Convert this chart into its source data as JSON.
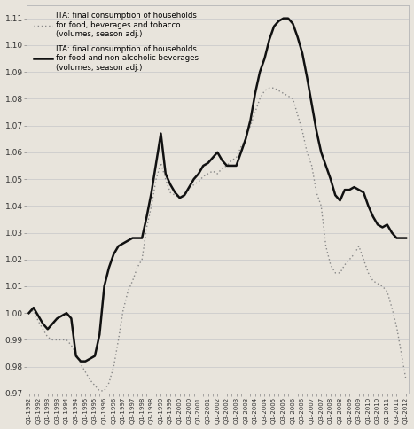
{
  "legend1_label": "ITA: final consumption of households\nfor food, beverages and tobacco\n(volumes, season adj.)",
  "legend2_label": "ITA: final consumption of households\nfor food and non-alcoholic beverages\n(volumes, season adj.)",
  "background_color": "#e8e4dc",
  "grid_color": "#cccccc",
  "solid_color": "#111111",
  "dotted_color": "#888888",
  "solid_lw": 1.8,
  "dotted_lw": 1.0,
  "ylim": [
    0.97,
    1.115
  ],
  "yticks": [
    0.97,
    0.98,
    0.99,
    1.0,
    1.01,
    1.02,
    1.03,
    1.04,
    1.05,
    1.06,
    1.07,
    1.08,
    1.09,
    1.1,
    1.11
  ],
  "solid_data": [
    1.0,
    1.002,
    0.999,
    0.996,
    0.994,
    0.996,
    0.998,
    0.999,
    1.0,
    0.998,
    0.984,
    0.982,
    0.982,
    0.983,
    0.984,
    0.992,
    1.01,
    1.017,
    1.022,
    1.025,
    1.026,
    1.027,
    1.028,
    1.028,
    1.028,
    1.036,
    1.045,
    1.056,
    1.067,
    1.052,
    1.048,
    1.045,
    1.043,
    1.044,
    1.047,
    1.05,
    1.052,
    1.055,
    1.056,
    1.058,
    1.06,
    1.057,
    1.055,
    1.055,
    1.055,
    1.06,
    1.065,
    1.072,
    1.082,
    1.09,
    1.095,
    1.102,
    1.107,
    1.109,
    1.11,
    1.11,
    1.108,
    1.103,
    1.097,
    1.088,
    1.078,
    1.068,
    1.06,
    1.055,
    1.05,
    1.044,
    1.042,
    1.046,
    1.046,
    1.047,
    1.046,
    1.045,
    1.04,
    1.036,
    1.033,
    1.032,
    1.033,
    1.03,
    1.028,
    1.028,
    1.028
  ],
  "dotted_data": [
    1.0,
    1.001,
    0.997,
    0.994,
    0.991,
    0.99,
    0.99,
    0.99,
    0.99,
    0.988,
    0.985,
    0.981,
    0.978,
    0.975,
    0.973,
    0.971,
    0.971,
    0.974,
    0.98,
    0.99,
    1.001,
    1.008,
    1.012,
    1.017,
    1.02,
    1.032,
    1.04,
    1.05,
    1.056,
    1.05,
    1.045,
    1.044,
    1.043,
    1.044,
    1.046,
    1.048,
    1.049,
    1.051,
    1.052,
    1.053,
    1.052,
    1.054,
    1.055,
    1.057,
    1.058,
    1.062,
    1.065,
    1.07,
    1.075,
    1.08,
    1.083,
    1.084,
    1.084,
    1.083,
    1.082,
    1.081,
    1.08,
    1.074,
    1.068,
    1.06,
    1.055,
    1.045,
    1.04,
    1.025,
    1.018,
    1.015,
    1.015,
    1.018,
    1.02,
    1.022,
    1.025,
    1.02,
    1.015,
    1.012,
    1.011,
    1.01,
    1.008,
    1.002,
    0.995,
    0.985,
    0.975
  ]
}
